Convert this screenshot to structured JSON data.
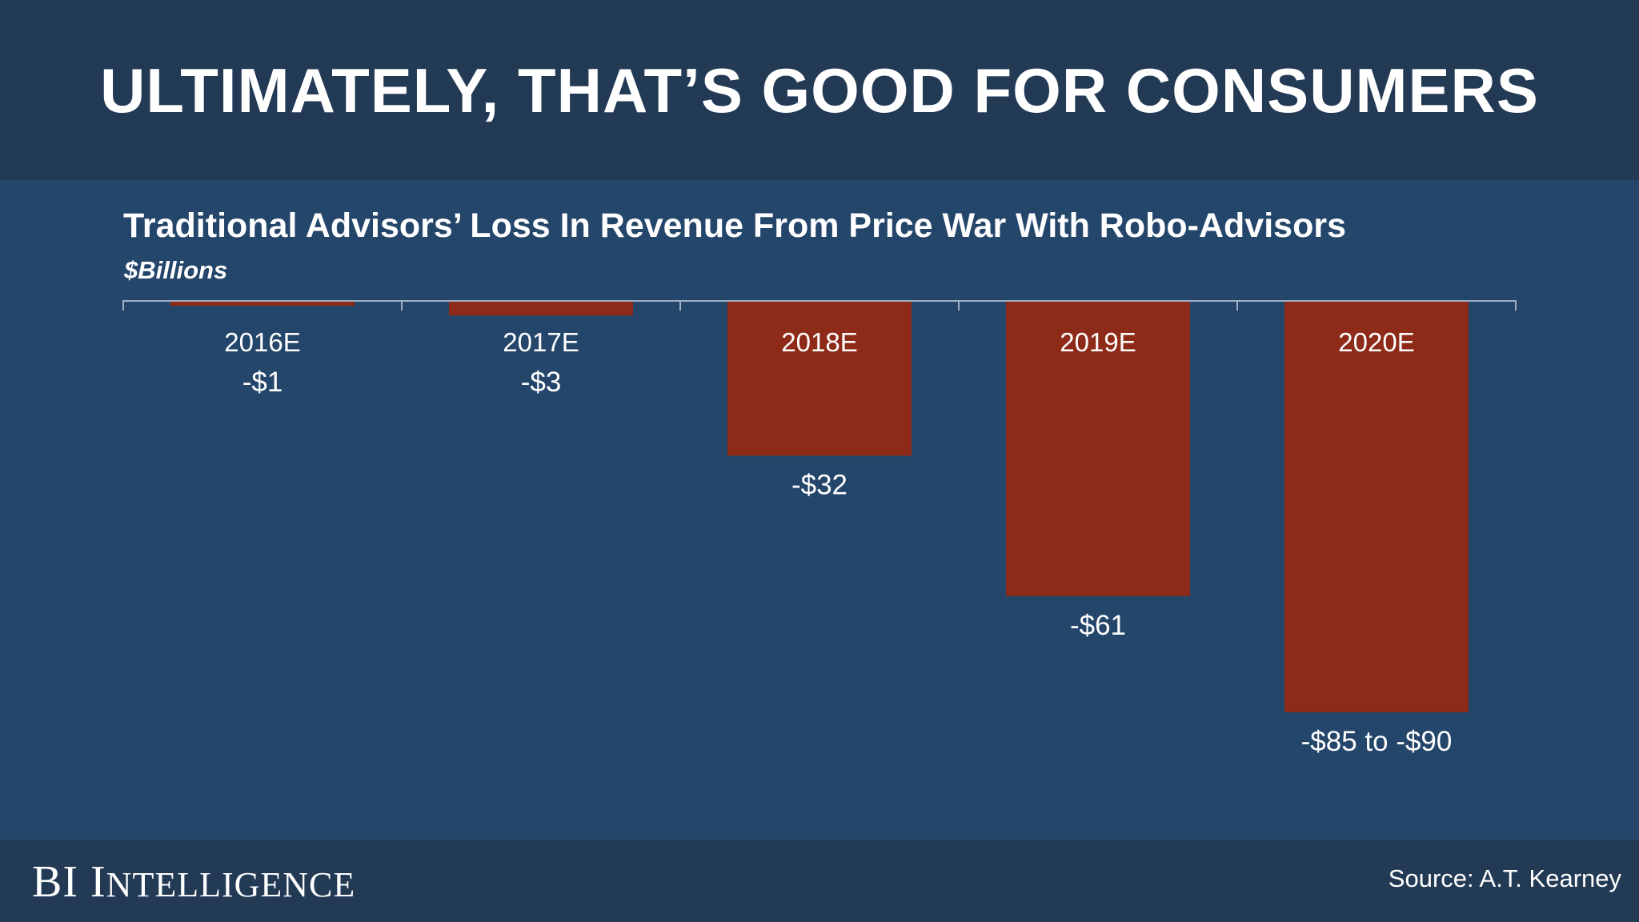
{
  "slide": {
    "title": "ULTIMATELY, THAT’S GOOD FOR CONSUMERS"
  },
  "chart_data": {
    "type": "bar",
    "title": "Traditional Advisors’ Loss In Revenue From Price War With Robo-Advisors",
    "subtitle": "$Billions",
    "categories": [
      "2016E",
      "2017E",
      "2018E",
      "2019E",
      "2020E"
    ],
    "values": [
      -1,
      -3,
      -32,
      -61,
      -85
    ],
    "value_labels": [
      "-$1",
      "-$3",
      "-$32",
      "-$61",
      "-$85 to -$90"
    ],
    "ylim": [
      -88,
      0
    ],
    "grid": false,
    "bar_color": "#8e2a18",
    "axis_color": "#9fb0c4"
  },
  "footer": {
    "brand_b": "B",
    "brand_i": "I",
    "brand_word_initial": "I",
    "brand_word_rest": "NTELLIGENCE",
    "source": "Source: A.T. Kearney"
  },
  "colors": {
    "background": "#24466b",
    "header_band": "#233a55",
    "text": "#ffffff"
  }
}
